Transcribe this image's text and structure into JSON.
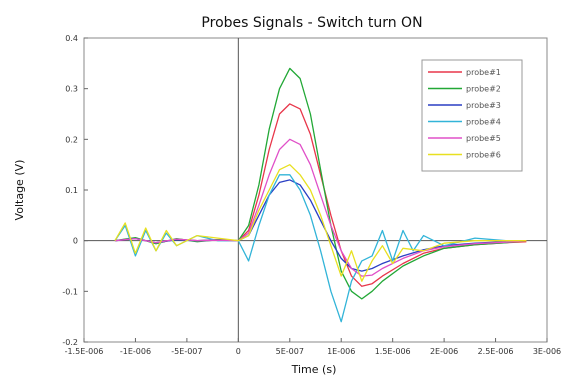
{
  "chart_data": {
    "type": "line",
    "title": "Probes Signals - Switch turn ON",
    "xlabel": "Time (s)",
    "ylabel": "Voltage (V)",
    "xlim": [
      -1.5e-06,
      3e-06
    ],
    "ylim": [
      -0.2,
      0.4
    ],
    "x_ticks": [
      {
        "v": -1.5e-06,
        "label": "-1.5E-006"
      },
      {
        "v": -1e-06,
        "label": "-1E-006"
      },
      {
        "v": -5e-07,
        "label": "-5E-007"
      },
      {
        "v": 0,
        "label": "0"
      },
      {
        "v": 5e-07,
        "label": "5E-007"
      },
      {
        "v": 1e-06,
        "label": "1E-006"
      },
      {
        "v": 1.5e-06,
        "label": "1.5E-006"
      },
      {
        "v": 2e-06,
        "label": "2E-006"
      },
      {
        "v": 2.5e-06,
        "label": "2.5E-006"
      },
      {
        "v": 3e-06,
        "label": "3E-006"
      }
    ],
    "y_ticks": [
      {
        "v": -0.2,
        "label": "-0.2"
      },
      {
        "v": -0.1,
        "label": "-0.1"
      },
      {
        "v": 0,
        "label": "0"
      },
      {
        "v": 0.1,
        "label": "0.1"
      },
      {
        "v": 0.2,
        "label": "0.2"
      },
      {
        "v": 0.3,
        "label": "0.3"
      },
      {
        "v": 0.4,
        "label": "0.4"
      }
    ],
    "grid": false,
    "legend": "top-right",
    "series": [
      {
        "name": "probe#1",
        "color": "#e8364a",
        "x": [
          -1.2e-06,
          -1e-06,
          -8e-07,
          -6e-07,
          -4e-07,
          -2e-07,
          0,
          1e-07,
          2e-07,
          3e-07,
          4e-07,
          5e-07,
          6e-07,
          7e-07,
          8e-07,
          9e-07,
          1e-06,
          1.1e-06,
          1.2e-06,
          1.3e-06,
          1.4e-06,
          1.6e-06,
          1.8e-06,
          2e-06,
          2.3e-06,
          2.6e-06,
          2.8e-06
        ],
        "y": [
          0,
          0.005,
          -0.005,
          0.003,
          0,
          0.002,
          0,
          0.02,
          0.09,
          0.18,
          0.25,
          0.27,
          0.26,
          0.21,
          0.13,
          0.05,
          -0.02,
          -0.07,
          -0.09,
          -0.085,
          -0.07,
          -0.045,
          -0.025,
          -0.015,
          -0.008,
          -0.004,
          -0.002
        ]
      },
      {
        "name": "probe#2",
        "color": "#22a836",
        "x": [
          -1.2e-06,
          -1e-06,
          -8e-07,
          -6e-07,
          -4e-07,
          -2e-07,
          0,
          1e-07,
          2e-07,
          3e-07,
          4e-07,
          5e-07,
          6e-07,
          7e-07,
          8e-07,
          9e-07,
          1e-06,
          1.1e-06,
          1.2e-06,
          1.3e-06,
          1.4e-06,
          1.6e-06,
          1.8e-06,
          2e-06,
          2.3e-06,
          2.6e-06,
          2.8e-06
        ],
        "y": [
          0,
          0.006,
          -0.006,
          0.004,
          -0.002,
          0.002,
          0,
          0.03,
          0.11,
          0.22,
          0.3,
          0.34,
          0.32,
          0.25,
          0.14,
          0.03,
          -0.06,
          -0.1,
          -0.115,
          -0.1,
          -0.08,
          -0.05,
          -0.03,
          -0.015,
          -0.008,
          -0.004,
          0
        ]
      },
      {
        "name": "probe#3",
        "color": "#2a3fc4",
        "x": [
          -1.2e-06,
          -1e-06,
          -8e-07,
          -6e-07,
          -4e-07,
          -2e-07,
          0,
          1e-07,
          2e-07,
          3e-07,
          4e-07,
          5e-07,
          6e-07,
          7e-07,
          8e-07,
          9e-07,
          1e-06,
          1.1e-06,
          1.2e-06,
          1.3e-06,
          1.4e-06,
          1.6e-06,
          1.8e-06,
          2e-06,
          2.3e-06,
          2.6e-06,
          2.8e-06
        ],
        "y": [
          0,
          0.004,
          -0.004,
          0.002,
          0,
          0.001,
          0,
          0.01,
          0.05,
          0.09,
          0.115,
          0.12,
          0.11,
          0.08,
          0.04,
          0.0,
          -0.035,
          -0.055,
          -0.06,
          -0.055,
          -0.045,
          -0.03,
          -0.018,
          -0.01,
          -0.005,
          -0.002,
          0
        ]
      },
      {
        "name": "probe#4",
        "color": "#32b4d8",
        "x": [
          -1.2e-06,
          -1.1e-06,
          -1e-06,
          -9e-07,
          -8e-07,
          -7e-07,
          -6e-07,
          -4e-07,
          -2e-07,
          0,
          1e-07,
          2e-07,
          3e-07,
          4e-07,
          5e-07,
          6e-07,
          7e-07,
          8e-07,
          9e-07,
          1e-06,
          1.05e-06,
          1.1e-06,
          1.2e-06,
          1.3e-06,
          1.4e-06,
          1.5e-06,
          1.6e-06,
          1.7e-06,
          1.8e-06,
          2e-06,
          2.3e-06,
          2.6e-06,
          2.8e-06
        ],
        "y": [
          0,
          0.03,
          -0.03,
          0.02,
          -0.02,
          0.015,
          -0.01,
          0.01,
          0,
          0,
          -0.04,
          0.03,
          0.09,
          0.13,
          0.13,
          0.1,
          0.05,
          -0.02,
          -0.1,
          -0.16,
          -0.12,
          -0.08,
          -0.04,
          -0.03,
          0.02,
          -0.04,
          0.02,
          -0.02,
          0.01,
          -0.01,
          0.005,
          0,
          0
        ]
      },
      {
        "name": "probe#5",
        "color": "#e050c8",
        "x": [
          -1.2e-06,
          -1e-06,
          -8e-07,
          -6e-07,
          -4e-07,
          -2e-07,
          0,
          1e-07,
          2e-07,
          3e-07,
          4e-07,
          5e-07,
          6e-07,
          7e-07,
          8e-07,
          9e-07,
          1e-06,
          1.1e-06,
          1.2e-06,
          1.3e-06,
          1.4e-06,
          1.6e-06,
          1.8e-06,
          2e-06,
          2.3e-06,
          2.6e-06,
          2.8e-06
        ],
        "y": [
          0,
          0.004,
          -0.004,
          0.003,
          0,
          0.001,
          0,
          0.015,
          0.07,
          0.13,
          0.18,
          0.2,
          0.19,
          0.15,
          0.09,
          0.03,
          -0.02,
          -0.055,
          -0.07,
          -0.068,
          -0.055,
          -0.035,
          -0.02,
          -0.012,
          -0.006,
          -0.003,
          0
        ]
      },
      {
        "name": "probe#6",
        "color": "#e8e020",
        "x": [
          -1.2e-06,
          -1.1e-06,
          -1e-06,
          -9e-07,
          -8e-07,
          -7e-07,
          -6e-07,
          -4e-07,
          -2e-07,
          0,
          1e-07,
          2e-07,
          3e-07,
          4e-07,
          5e-07,
          6e-07,
          7e-07,
          8e-07,
          9e-07,
          1e-06,
          1.1e-06,
          1.2e-06,
          1.3e-06,
          1.4e-06,
          1.5e-06,
          1.6e-06,
          1.8e-06,
          2e-06,
          2.3e-06,
          2.6e-06,
          2.8e-06
        ],
        "y": [
          0,
          0.035,
          -0.025,
          0.025,
          -0.02,
          0.02,
          -0.01,
          0.01,
          0.005,
          0,
          0.01,
          0.06,
          0.1,
          0.14,
          0.15,
          0.13,
          0.1,
          0.05,
          -0.01,
          -0.07,
          -0.02,
          -0.08,
          -0.04,
          -0.01,
          -0.045,
          -0.015,
          -0.02,
          -0.005,
          0,
          0,
          0
        ]
      }
    ]
  }
}
